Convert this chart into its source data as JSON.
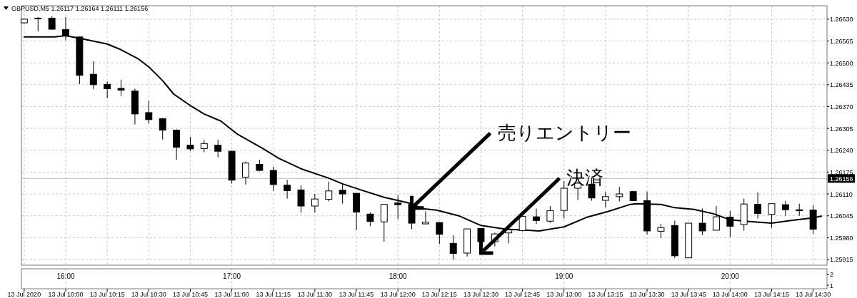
{
  "chart_data": [
    {
      "type": "candlestick",
      "title": "GBPUSD,M5  1.26117 1.26164 1.26111 1.26156",
      "xlim": [
        "2020-07-13T09:44",
        "2020-07-13T14:35"
      ],
      "ylim": [
        1.25898,
        1.2667
      ],
      "xticks": [
        {
          "value": "2020-07-13T09:45",
          "label": "13 Jul 2020"
        },
        {
          "value": "2020-07-13T10:00",
          "label": "13 Jul 10:00"
        },
        {
          "value": "2020-07-13T10:15",
          "label": "13 Jul 10:15"
        },
        {
          "value": "2020-07-13T10:30",
          "label": "13 Jul 10:30"
        },
        {
          "value": "2020-07-13T10:45",
          "label": "13 Jul 10:45"
        },
        {
          "value": "2020-07-13T11:00",
          "label": "13 Jul 11:00"
        },
        {
          "value": "2020-07-13T11:15",
          "label": "13 Jul 11:15"
        },
        {
          "value": "2020-07-13T11:30",
          "label": "13 Jul 11:30"
        },
        {
          "value": "2020-07-13T11:45",
          "label": "13 Jul 11:45"
        },
        {
          "value": "2020-07-13T12:00",
          "label": "13 Jul 12:00"
        },
        {
          "value": "2020-07-13T12:15",
          "label": "13 Jul 12:15"
        },
        {
          "value": "2020-07-13T12:30",
          "label": "13 Jul 12:30"
        },
        {
          "value": "2020-07-13T12:45",
          "label": "13 Jul 12:45"
        },
        {
          "value": "2020-07-13T13:00",
          "label": "13 Jul 13:00"
        },
        {
          "value": "2020-07-13T13:15",
          "label": "13 Jul 13:15"
        },
        {
          "value": "2020-07-13T13:30",
          "label": "13 Jul 13:30"
        },
        {
          "value": "2020-07-13T13:45",
          "label": "13 Jul 13:45"
        },
        {
          "value": "2020-07-13T14:00",
          "label": "13 Jul 14:00"
        },
        {
          "value": "2020-07-13T14:15",
          "label": "13 Jul 14:15"
        },
        {
          "value": "2020-07-13T14:30",
          "label": "13 Jul 14:30"
        }
      ],
      "yticks": [
        {
          "value": 1.2663,
          "label": "1.26630"
        },
        {
          "value": 1.26565,
          "label": "1.26565"
        },
        {
          "value": 1.265,
          "label": "1.26500"
        },
        {
          "value": 1.26435,
          "label": "1.26435"
        },
        {
          "value": 1.2637,
          "label": "1.26370"
        },
        {
          "value": 1.26305,
          "label": "1.26305"
        },
        {
          "value": 1.2624,
          "label": "1.26240"
        },
        {
          "value": 1.26175,
          "label": "1.26175"
        },
        {
          "value": 1.2611,
          "label": "1.26110"
        },
        {
          "value": 1.26045,
          "label": "1.26045"
        },
        {
          "value": 1.2598,
          "label": "1.25980"
        },
        {
          "value": 1.25915,
          "label": "1.25915"
        }
      ],
      "grid": true,
      "x": [
        "2020-07-13T09:45",
        "2020-07-13T09:50",
        "2020-07-13T09:55",
        "2020-07-13T10:00",
        "2020-07-13T10:05",
        "2020-07-13T10:10",
        "2020-07-13T10:15",
        "2020-07-13T10:20",
        "2020-07-13T10:25",
        "2020-07-13T10:30",
        "2020-07-13T10:35",
        "2020-07-13T10:40",
        "2020-07-13T10:45",
        "2020-07-13T10:50",
        "2020-07-13T10:55",
        "2020-07-13T11:00",
        "2020-07-13T11:05",
        "2020-07-13T11:10",
        "2020-07-13T11:15",
        "2020-07-13T11:20",
        "2020-07-13T11:25",
        "2020-07-13T11:30",
        "2020-07-13T11:35",
        "2020-07-13T11:40",
        "2020-07-13T11:45",
        "2020-07-13T11:50",
        "2020-07-13T11:55",
        "2020-07-13T12:00",
        "2020-07-13T12:05",
        "2020-07-13T12:10",
        "2020-07-13T12:15",
        "2020-07-13T12:20",
        "2020-07-13T12:25",
        "2020-07-13T12:30",
        "2020-07-13T12:35",
        "2020-07-13T12:40",
        "2020-07-13T12:45",
        "2020-07-13T12:50",
        "2020-07-13T12:55",
        "2020-07-13T13:00",
        "2020-07-13T13:05",
        "2020-07-13T13:10",
        "2020-07-13T13:15",
        "2020-07-13T13:20",
        "2020-07-13T13:25",
        "2020-07-13T13:30",
        "2020-07-13T13:35",
        "2020-07-13T13:40",
        "2020-07-13T13:45",
        "2020-07-13T13:50",
        "2020-07-13T13:55",
        "2020-07-13T14:00",
        "2020-07-13T14:05",
        "2020-07-13T14:10",
        "2020-07-13T14:15",
        "2020-07-13T14:20",
        "2020-07-13T14:25",
        "2020-07-13T14:30"
      ],
      "ohlc": [
        [
          1.26619,
          1.26632,
          1.26617,
          1.2663
        ],
        [
          1.26631,
          1.26636,
          1.26594,
          1.26633
        ],
        [
          1.26633,
          1.26638,
          1.26599,
          1.266
        ],
        [
          1.26599,
          1.26636,
          1.26567,
          1.2658
        ],
        [
          1.26577,
          1.26577,
          1.26437,
          1.26463
        ],
        [
          1.26466,
          1.26505,
          1.26422,
          1.26435
        ],
        [
          1.26436,
          1.26445,
          1.26395,
          1.26423
        ],
        [
          1.26424,
          1.2645,
          1.26401,
          1.26419
        ],
        [
          1.26416,
          1.26423,
          1.26317,
          1.26348
        ],
        [
          1.26352,
          1.26387,
          1.26319,
          1.26331
        ],
        [
          1.26334,
          1.26336,
          1.26272,
          1.263
        ],
        [
          1.263,
          1.26302,
          1.26212,
          1.26249
        ],
        [
          1.26255,
          1.2628,
          1.26238,
          1.26244
        ],
        [
          1.26245,
          1.26271,
          1.26234,
          1.2626
        ],
        [
          1.26255,
          1.26271,
          1.26219,
          1.26237
        ],
        [
          1.26237,
          1.26239,
          1.26141,
          1.26151
        ],
        [
          1.2616,
          1.26206,
          1.26138,
          1.26202
        ],
        [
          1.26198,
          1.26212,
          1.26177,
          1.2618
        ],
        [
          1.2618,
          1.26191,
          1.26119,
          1.26138
        ],
        [
          1.26136,
          1.26152,
          1.26096,
          1.2612
        ],
        [
          1.26122,
          1.26136,
          1.26054,
          1.26074
        ],
        [
          1.26074,
          1.2611,
          1.26055,
          1.26095
        ],
        [
          1.26094,
          1.26147,
          1.26088,
          1.26119
        ],
        [
          1.26121,
          1.26141,
          1.26081,
          1.2611
        ],
        [
          1.26112,
          1.26112,
          1.26003,
          1.26056
        ],
        [
          1.2605,
          1.26055,
          1.26014,
          1.26028
        ],
        [
          1.26027,
          1.26079,
          1.25968,
          1.26079
        ],
        [
          1.26083,
          1.26106,
          1.26035,
          1.26078
        ],
        [
          1.26079,
          1.26088,
          1.26005,
          1.26023
        ],
        [
          1.26021,
          1.26058,
          1.2602,
          1.26026
        ],
        [
          1.26025,
          1.26025,
          1.25961,
          1.2599
        ],
        [
          1.25963,
          1.25987,
          1.25915,
          1.25933
        ],
        [
          1.25934,
          1.26006,
          1.25924,
          1.26006
        ],
        [
          1.26007,
          1.26007,
          1.25934,
          1.25968
        ],
        [
          1.25968,
          1.25995,
          1.25954,
          1.25991
        ],
        [
          1.25994,
          1.26012,
          1.25963,
          1.26003
        ],
        [
          1.26001,
          1.26058,
          1.25998,
          1.26043
        ],
        [
          1.26042,
          1.26066,
          1.26021,
          1.26031
        ],
        [
          1.26029,
          1.26074,
          1.26024,
          1.2606
        ],
        [
          1.26061,
          1.26148,
          1.26037,
          1.26127
        ],
        [
          1.26127,
          1.26146,
          1.26092,
          1.26142
        ],
        [
          1.26139,
          1.26157,
          1.2609,
          1.26098
        ],
        [
          1.26091,
          1.26116,
          1.2607,
          1.26102
        ],
        [
          1.26102,
          1.26131,
          1.26088,
          1.2611
        ],
        [
          1.26117,
          1.2612,
          1.26089,
          1.2609
        ],
        [
          1.2609,
          1.26117,
          1.25989,
          1.26
        ],
        [
          1.25999,
          1.26021,
          1.25979,
          1.2601
        ],
        [
          1.26016,
          1.2603,
          1.25919,
          1.25926
        ],
        [
          1.2592,
          1.26023,
          1.2592,
          1.26023
        ],
        [
          1.26023,
          1.26067,
          1.25988,
          1.26
        ],
        [
          1.26002,
          1.26074,
          1.26002,
          1.26042
        ],
        [
          1.26041,
          1.2606,
          1.25982,
          1.26014
        ],
        [
          1.26019,
          1.26096,
          1.26001,
          1.2608
        ],
        [
          1.26079,
          1.26115,
          1.26037,
          1.26052
        ],
        [
          1.26049,
          1.26081,
          1.26009,
          1.26081
        ],
        [
          1.26078,
          1.26089,
          1.26045,
          1.26063
        ],
        [
          1.26063,
          1.26081,
          1.26045,
          1.2606
        ],
        [
          1.26062,
          1.26077,
          1.25991,
          1.26005
        ]
      ],
      "series": [
        {
          "type": "line",
          "color": "#000000",
          "x": [
            "2020-07-13T09:45",
            "2020-07-13T09:56",
            "2020-07-13T10:00",
            "2020-07-13T10:07",
            "2020-07-13T10:15",
            "2020-07-13T10:20",
            "2020-07-13T10:26",
            "2020-07-13T10:30",
            "2020-07-13T10:35",
            "2020-07-13T10:39",
            "2020-07-13T10:45",
            "2020-07-13T10:50",
            "2020-07-13T10:56",
            "2020-07-13T11:00",
            "2020-07-13T11:02",
            "2020-07-13T11:11",
            "2020-07-13T11:17",
            "2020-07-13T11:25",
            "2020-07-13T11:35",
            "2020-07-13T11:40",
            "2020-07-13T11:47",
            "2020-07-13T11:55",
            "2020-07-13T12:04",
            "2020-07-13T12:09",
            "2020-07-13T12:14",
            "2020-07-13T12:22",
            "2020-07-13T12:30",
            "2020-07-13T12:39",
            "2020-07-13T12:47",
            "2020-07-13T12:51",
            "2020-07-13T13:00",
            "2020-07-13T13:08",
            "2020-07-13T13:16",
            "2020-07-13T13:24",
            "2020-07-13T13:26",
            "2020-07-13T13:35",
            "2020-07-13T13:40",
            "2020-07-13T13:47",
            "2020-07-13T13:54",
            "2020-07-13T14:00",
            "2020-07-13T14:07",
            "2020-07-13T14:15",
            "2020-07-13T14:22",
            "2020-07-13T14:29",
            "2020-07-13T14:33"
          ],
          "values": [
            1.26577,
            1.26577,
            1.26581,
            1.2657,
            1.26556,
            1.26539,
            1.26513,
            1.26488,
            1.26447,
            1.26407,
            1.26373,
            1.26348,
            1.26327,
            1.26301,
            1.26288,
            1.26246,
            1.26216,
            1.26185,
            1.26157,
            1.2614,
            1.26121,
            1.261,
            1.26083,
            1.26066,
            1.26062,
            1.26045,
            1.26016,
            1.26005,
            1.26002,
            1.26,
            1.26012,
            1.2604,
            1.26058,
            1.26079,
            1.26081,
            1.26079,
            1.26069,
            1.26064,
            1.26051,
            1.26033,
            1.26028,
            1.26023,
            1.26031,
            1.26038,
            1.26044
          ]
        }
      ],
      "ref_lines": [
        {
          "axis": "y",
          "value": 1.26156,
          "label": "1.26156",
          "color": "#c0c0c0"
        }
      ],
      "annotations": [
        {
          "text": "売りエントリー",
          "x": "2020-07-13T12:05",
          "y": 1.26068
        },
        {
          "text": "決済",
          "x": "2020-07-13T12:30",
          "y": 1.25934
        }
      ]
    },
    {
      "type": "line",
      "xlim": [
        "2020-07-13T15:44",
        "2020-07-13T20:35"
      ],
      "ylim": [
        0.67,
        2.53
      ],
      "xticks": [
        {
          "value": "2020-07-13T16:00",
          "label": "16:00"
        },
        {
          "value": "2020-07-13T17:00",
          "label": "17:00"
        },
        {
          "value": "2020-07-13T18:00",
          "label": "18:00"
        },
        {
          "value": "2020-07-13T19:00",
          "label": "19:00"
        },
        {
          "value": "2020-07-13T20:00",
          "label": "20:00"
        }
      ],
      "yticks": [
        2,
        1
      ],
      "grid": "x"
    }
  ]
}
